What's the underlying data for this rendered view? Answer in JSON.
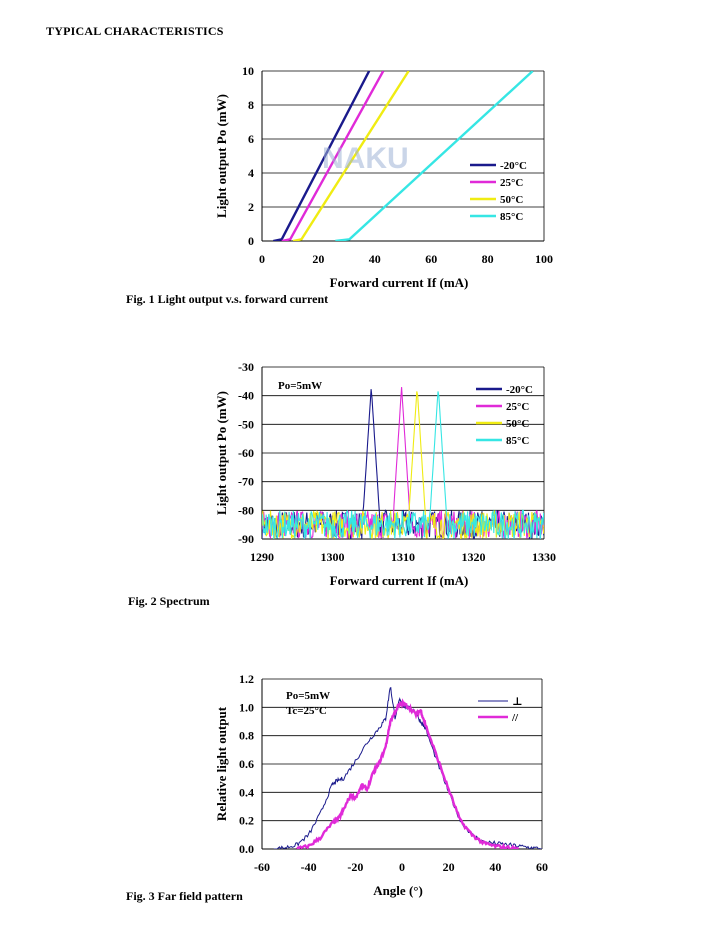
{
  "page": {
    "heading": "TYPICAL CHARACTERISTICS",
    "watermark": "NAKU",
    "fig1_caption": "Fig. 1  Light output v.s. forward current",
    "fig2_caption": "Fig. 2  Spectrum",
    "fig3_caption": "Fig. 3  Far field pattern"
  },
  "chart_data": [
    {
      "type": "line",
      "xlabel": "Forward current If (mA)",
      "ylabel": "Light output Po (mW)",
      "xlim": [
        0,
        100
      ],
      "ylim": [
        0,
        10
      ],
      "xticks": [
        0,
        20,
        40,
        60,
        80,
        100
      ],
      "yticks": [
        0,
        2,
        4,
        6,
        8,
        10
      ],
      "grid": "horizontal",
      "legend": "right",
      "series": [
        {
          "name": "-20°C",
          "color": "#1a1a8c",
          "x": [
            4,
            7,
            38
          ],
          "y": [
            0,
            0.1,
            10
          ]
        },
        {
          "name": "25°C",
          "color": "#e02ad8",
          "x": [
            7,
            10,
            43
          ],
          "y": [
            0,
            0.1,
            10
          ]
        },
        {
          "name": "50°C",
          "color": "#f0ec12",
          "x": [
            11,
            14,
            52
          ],
          "y": [
            0,
            0.1,
            10
          ]
        },
        {
          "name": "85°C",
          "color": "#36e6e4",
          "x": [
            26,
            31,
            96
          ],
          "y": [
            0,
            0.1,
            10
          ]
        }
      ]
    },
    {
      "type": "line",
      "xlabel": "Forward current If (mA)",
      "ylabel": "Light output Po (mW)",
      "annotation": "Po=5mW",
      "xlim": [
        1290,
        1330
      ],
      "ylim": [
        -90,
        -30
      ],
      "xticks": [
        1290,
        1300,
        1310,
        1320,
        1330
      ],
      "yticks": [
        -30,
        -40,
        -50,
        -60,
        -70,
        -80,
        -90
      ],
      "grid": "horizontal",
      "legend": "top-right",
      "series": [
        {
          "name": "-20°C",
          "color": "#1a1a8c",
          "peak_x": 1305.5,
          "peak_y": -37
        },
        {
          "name": "25°C",
          "color": "#e02ad8",
          "peak_x": 1309.8,
          "peak_y": -37
        },
        {
          "name": "50°C",
          "color": "#f0ec12",
          "peak_x": 1312,
          "peak_y": -37
        },
        {
          "name": "85°C",
          "color": "#36e6e4",
          "peak_x": 1315,
          "peak_y": -37
        }
      ],
      "noise_floor": [
        -90,
        -82
      ]
    },
    {
      "type": "line",
      "xlabel": "Angle (°)",
      "ylabel": "Relative light output",
      "annotation": [
        "Po=5mW",
        "Tc=25°C"
      ],
      "xlim": [
        -60,
        60
      ],
      "ylim": [
        0,
        1.2
      ],
      "xticks": [
        -60,
        -40,
        -20,
        0,
        20,
        40,
        60
      ],
      "yticks": [
        0.0,
        0.2,
        0.4,
        0.6,
        0.8,
        1.0,
        1.2
      ],
      "grid": "horizontal",
      "legend": "top-right",
      "series": [
        {
          "name": "⊥",
          "color": "#1a1a8c",
          "x": [
            -55,
            -50,
            -45,
            -40,
            -35,
            -30,
            -28,
            -25,
            -20,
            -15,
            -10,
            -7,
            -5,
            -3,
            -1,
            0,
            2,
            5,
            8,
            10,
            15,
            20,
            25,
            30,
            35,
            40,
            45,
            50,
            55,
            60
          ],
          "y": [
            0.0,
            0.01,
            0.03,
            0.1,
            0.25,
            0.45,
            0.48,
            0.5,
            0.62,
            0.75,
            0.85,
            0.92,
            1.15,
            0.93,
            1.05,
            1.02,
            1.0,
            0.98,
            0.9,
            0.85,
            0.62,
            0.4,
            0.2,
            0.1,
            0.05,
            0.04,
            0.03,
            0.02,
            0.01,
            0.0
          ]
        },
        {
          "name": "//",
          "color": "#e02ad8",
          "x": [
            -45,
            -40,
            -35,
            -30,
            -27,
            -25,
            -22,
            -20,
            -17,
            -15,
            -12,
            -10,
            -7,
            -5,
            -2,
            0,
            3,
            6,
            8,
            10,
            15,
            20,
            25,
            30,
            35,
            40,
            45,
            50
          ],
          "y": [
            0.0,
            0.02,
            0.08,
            0.18,
            0.22,
            0.28,
            0.38,
            0.36,
            0.45,
            0.42,
            0.55,
            0.6,
            0.72,
            0.9,
            1.0,
            1.03,
            1.0,
            0.95,
            0.98,
            0.88,
            0.65,
            0.42,
            0.2,
            0.1,
            0.04,
            0.02,
            0.01,
            0.0
          ]
        }
      ]
    }
  ]
}
